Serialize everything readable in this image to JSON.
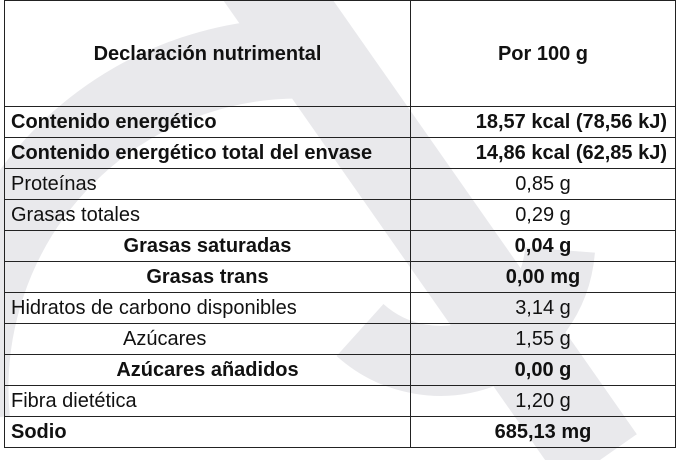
{
  "table": {
    "header": {
      "name": "Declaración nutrimental",
      "value": "Por 100 g"
    },
    "rows": [
      {
        "name": "Contenido energético",
        "value": "18,57 kcal (78,56 kJ)"
      },
      {
        "name": "Contenido energético total del envase",
        "value": "14,86 kcal (62,85 kJ)"
      },
      {
        "name": "Proteínas",
        "value": "0,85 g"
      },
      {
        "name": "Grasas totales",
        "value": "0,29 g"
      },
      {
        "name": "Grasas saturadas",
        "value": "0,04 g"
      },
      {
        "name": "Grasas trans",
        "value": "0,00 mg"
      },
      {
        "name": "Hidratos de carbono disponibles",
        "value": "3,14 g"
      },
      {
        "name": "Azúcares",
        "value": "1,55 g"
      },
      {
        "name": "Azúcares añadidos",
        "value": "0,00 g"
      },
      {
        "name": "Fibra dietética",
        "value": "1,20 g"
      },
      {
        "name": "Sodio",
        "value": "685,13 mg"
      }
    ]
  }
}
